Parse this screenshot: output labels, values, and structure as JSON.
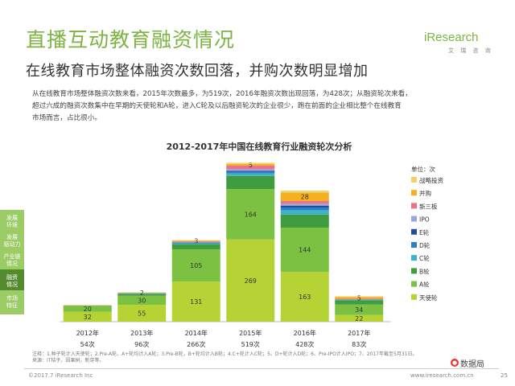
{
  "header": {
    "title": "直播互动教育融资情况",
    "subtitle": "在线教育市场整体融资次数回落，并购次数明显增加",
    "logo_brand": "iResearch",
    "logo_sub": "艾 瑞 咨 询"
  },
  "description": [
    "从在线教育市场整体融资次数来看，2015年次数最多，为519次，2016年融资次数出现回落，为428次；从融资轮次来看，",
    "超过六成的融资次数集中在早期的天使轮和A轮，进入C轮及以后融资轮次的企业很少，跑在前面的企业相比整个在线教育",
    "市场而言，占比很小。"
  ],
  "sidebar": [
    {
      "line1": "发展",
      "line2": "环境",
      "active": false
    },
    {
      "line1": "发展",
      "line2": "驱动力",
      "active": false
    },
    {
      "line1": "产业链",
      "line2": "情况",
      "active": false
    },
    {
      "line1": "融资",
      "line2": "情况",
      "active": true
    },
    {
      "line1": "市场",
      "line2": "特征",
      "active": false
    }
  ],
  "chart_data": {
    "type": "bar",
    "stacked": true,
    "title": "2012-2017年中国在线教育行业融资轮次分析",
    "unit_label": "单位：次",
    "categories": [
      "2012年",
      "2013年",
      "2014年",
      "2015年",
      "2016年",
      "2017年"
    ],
    "totals_labels": [
      "54次",
      "96次",
      "266次",
      "519次",
      "428次",
      "83次"
    ],
    "totals": [
      54,
      96,
      266,
      519,
      428,
      83
    ],
    "series": [
      {
        "name": "天使轮",
        "color": "#b5d334",
        "values": [
          32,
          55,
          131,
          269,
          163,
          22
        ],
        "labels": [
          "32",
          "55",
          "131",
          "269",
          "163",
          "22"
        ]
      },
      {
        "name": "A轮",
        "color": "#7cc142",
        "values": [
          20,
          30,
          105,
          164,
          144,
          34
        ],
        "labels": [
          "20",
          "30",
          "105",
          "164",
          "144",
          "34"
        ]
      },
      {
        "name": "B轮",
        "color": "#3f9c3f",
        "values": [
          1,
          5,
          17,
          43,
          43,
          14
        ],
        "labels": [
          "",
          "",
          "",
          "",
          "",
          ""
        ]
      },
      {
        "name": "C轮",
        "color": "#3db2c9",
        "values": [
          0,
          2,
          3,
          8,
          14,
          2
        ],
        "labels": [
          "",
          "",
          "",
          "",
          "",
          ""
        ]
      },
      {
        "name": "D轮",
        "color": "#2b7fc2",
        "values": [
          0,
          1,
          2,
          5,
          9,
          1
        ],
        "labels": [
          "",
          "",
          "",
          "",
          "",
          ""
        ]
      },
      {
        "name": "E轮",
        "color": "#1f4f9a",
        "values": [
          0,
          0,
          1,
          4,
          6,
          0
        ],
        "labels": [
          "",
          "",
          "",
          "",
          "",
          ""
        ]
      },
      {
        "name": "IPO",
        "color": "#9aa6d6",
        "values": [
          0,
          0,
          1,
          5,
          6,
          0
        ],
        "labels": [
          "",
          "",
          "",
          "",
          "",
          ""
        ]
      },
      {
        "name": "新三板",
        "color": "#e8738a",
        "values": [
          0,
          0,
          2,
          12,
          9,
          2
        ],
        "labels": [
          "",
          "",
          "",
          "",
          "",
          ""
        ]
      },
      {
        "name": "并购",
        "color": "#f5b021",
        "values": [
          1,
          2,
          3,
          5,
          28,
          5
        ],
        "labels": [
          "",
          "2",
          "3",
          "5",
          "28",
          "5"
        ]
      },
      {
        "name": "战略投资",
        "color": "#f2d36b",
        "values": [
          0,
          1,
          1,
          4,
          6,
          3
        ],
        "labels": [
          "",
          "",
          "",
          "",
          "",
          ""
        ]
      }
    ],
    "legend_position": "right",
    "ylim": [
      0,
      520
    ]
  },
  "notes": [
    "注释：1.种子轮计入天使轮；2.Pre-A轮、A+轮均计入A轮；3.Pre-B轮，B+轮均计入B轮；4.C+轮计入C轮；5、D+轮计入D轮；6、Pre-IPO计入IPO；7、2017年截至5月31日。",
    "来源：IT桔子，因果树，新芽等。"
  ],
  "footer": {
    "copyright": "©2017.7 iResearch Inc",
    "site": "www.iresearch.com.cn",
    "watermark": "数据局",
    "page": "25"
  }
}
